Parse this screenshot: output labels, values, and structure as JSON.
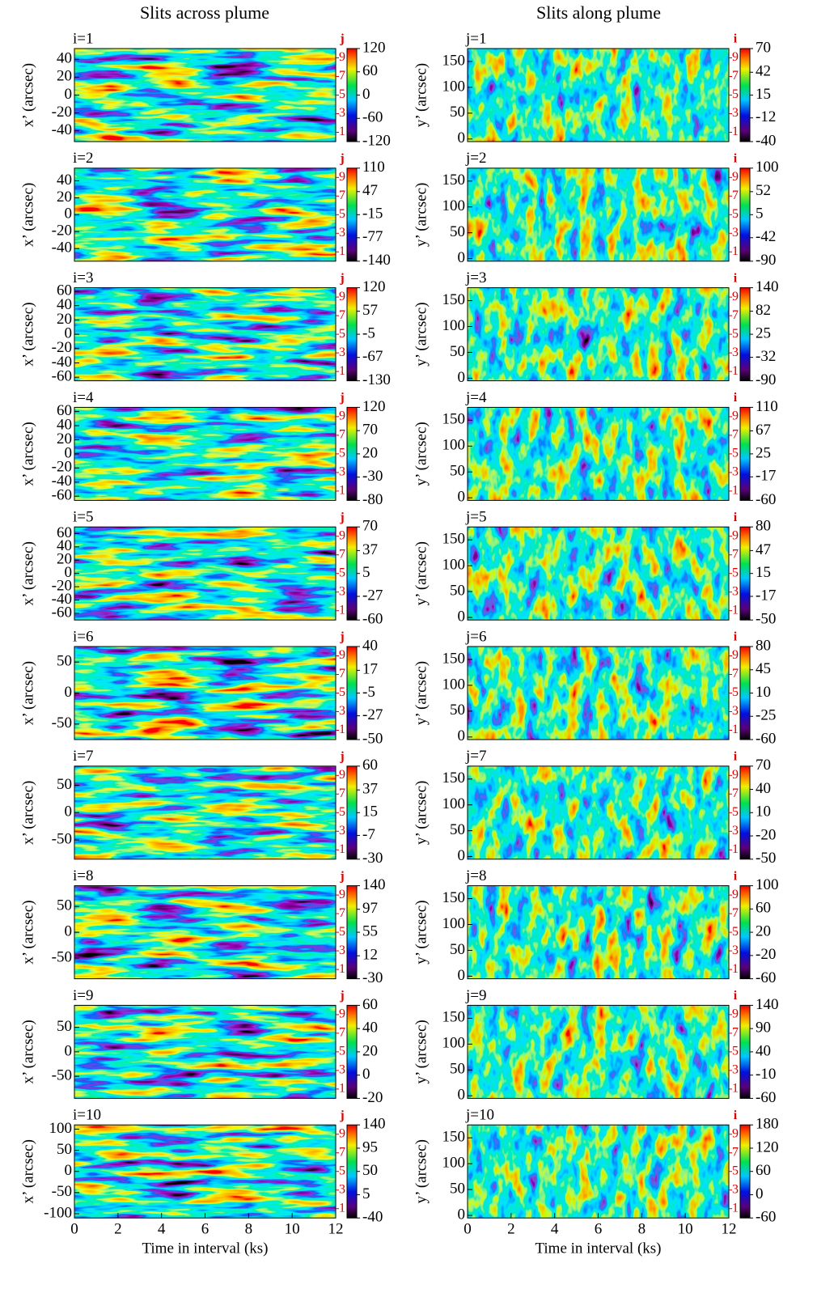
{
  "columns": [
    "Slits across plume",
    "Slits along plume"
  ],
  "chart_data": [
    {
      "type": "heatmap",
      "label": "i=1",
      "ylabel": "x’ (arcsec)",
      "ylim": [
        -52,
        52
      ],
      "yticks": [
        -40,
        -20,
        0,
        20,
        40
      ],
      "clim": [
        -120,
        120
      ],
      "cticks": [
        120,
        60,
        0,
        -60,
        -120
      ],
      "clabel": "j",
      "index_lim": [
        0,
        10
      ],
      "index_ticks": [
        1,
        3,
        5,
        7,
        9
      ]
    },
    {
      "type": "heatmap",
      "label": "i=2",
      "ylabel": "x’ (arcsec)",
      "ylim": [
        -55,
        55
      ],
      "yticks": [
        -40,
        -20,
        0,
        20,
        40
      ],
      "clim": [
        -140,
        110
      ],
      "cticks": [
        110,
        47,
        -15,
        -77,
        -140
      ],
      "clabel": "j",
      "index_lim": [
        0,
        10
      ],
      "index_ticks": [
        1,
        3,
        5,
        7,
        9
      ]
    },
    {
      "type": "heatmap",
      "label": "i=3",
      "ylabel": "x’ (arcsec)",
      "ylim": [
        -65,
        65
      ],
      "yticks": [
        -60,
        -40,
        -20,
        0,
        20,
        40,
        60
      ],
      "clim": [
        -130,
        120
      ],
      "cticks": [
        120,
        57,
        -5,
        -67,
        -130
      ],
      "clabel": "j",
      "index_lim": [
        0,
        10
      ],
      "index_ticks": [
        1,
        3,
        5,
        7,
        9
      ]
    },
    {
      "type": "heatmap",
      "label": "i=4",
      "ylabel": "x’ (arcsec)",
      "ylim": [
        -66,
        66
      ],
      "yticks": [
        -60,
        -40,
        -20,
        0,
        20,
        40,
        60
      ],
      "clim": [
        -80,
        120
      ],
      "cticks": [
        120,
        70,
        20,
        -30,
        -80
      ],
      "clabel": "j",
      "index_lim": [
        0,
        10
      ],
      "index_ticks": [
        1,
        3,
        5,
        7,
        9
      ]
    },
    {
      "type": "heatmap",
      "label": "i=5",
      "ylabel": "x’ (arcsec)",
      "ylim": [
        -70,
        70
      ],
      "yticks": [
        -60,
        -40,
        -20,
        0,
        20,
        40,
        60
      ],
      "clim": [
        -60,
        70
      ],
      "cticks": [
        70,
        37,
        5,
        -27,
        -60
      ],
      "clabel": "j",
      "index_lim": [
        0,
        10
      ],
      "index_ticks": [
        1,
        3,
        5,
        7,
        9
      ]
    },
    {
      "type": "heatmap",
      "label": "i=6",
      "ylabel": "x’ (arcsec)",
      "ylim": [
        -75,
        75
      ],
      "yticks": [
        -50,
        0,
        50
      ],
      "clim": [
        -50,
        40
      ],
      "cticks": [
        40,
        17,
        -5,
        -27,
        -50
      ],
      "clabel": "j",
      "index_lim": [
        0,
        10
      ],
      "index_ticks": [
        1,
        3,
        5,
        7,
        9
      ]
    },
    {
      "type": "heatmap",
      "label": "i=7",
      "ylabel": "x’ (arcsec)",
      "ylim": [
        -85,
        85
      ],
      "yticks": [
        -50,
        0,
        50
      ],
      "clim": [
        -30,
        60
      ],
      "cticks": [
        60,
        37,
        15,
        -7,
        -30
      ],
      "clabel": "j",
      "index_lim": [
        0,
        10
      ],
      "index_ticks": [
        1,
        3,
        5,
        7,
        9
      ]
    },
    {
      "type": "heatmap",
      "label": "i=8",
      "ylabel": "x’ (arcsec)",
      "ylim": [
        -90,
        90
      ],
      "yticks": [
        -50,
        0,
        50
      ],
      "clim": [
        -30,
        140
      ],
      "cticks": [
        140,
        97,
        55,
        12,
        -30
      ],
      "clabel": "j",
      "index_lim": [
        0,
        10
      ],
      "index_ticks": [
        1,
        3,
        5,
        7,
        9
      ]
    },
    {
      "type": "heatmap",
      "label": "i=9",
      "ylabel": "x’ (arcsec)",
      "ylim": [
        -95,
        95
      ],
      "yticks": [
        -50,
        0,
        50
      ],
      "clim": [
        -20,
        60
      ],
      "cticks": [
        60,
        40,
        20,
        0,
        -20
      ],
      "clabel": "j",
      "index_lim": [
        0,
        10
      ],
      "index_ticks": [
        1,
        3,
        5,
        7,
        9
      ]
    },
    {
      "type": "heatmap",
      "label": "i=10",
      "ylabel": "x’ (arcsec)",
      "ylim": [
        -110,
        110
      ],
      "yticks": [
        -100,
        -50,
        0,
        50,
        100
      ],
      "clim": [
        -40,
        140
      ],
      "cticks": [
        140,
        95,
        50,
        5,
        -40
      ],
      "clabel": "j",
      "index_lim": [
        0,
        10
      ],
      "index_ticks": [
        1,
        3,
        5,
        7,
        9
      ],
      "xlabel": "Time in interval (ks)",
      "xlim": [
        0,
        12
      ],
      "xticks": [
        0,
        2,
        4,
        6,
        8,
        10,
        12
      ]
    },
    {
      "type": "heatmap",
      "label": "j=1",
      "ylabel": "y’ (arcsec)",
      "ylim": [
        -5,
        175
      ],
      "yticks": [
        0,
        50,
        100,
        150
      ],
      "clim": [
        -40,
        70
      ],
      "cticks": [
        70,
        42,
        15,
        -12,
        -40
      ],
      "clabel": "i",
      "index_lim": [
        0,
        10
      ],
      "index_ticks": [
        1,
        3,
        5,
        7,
        9
      ]
    },
    {
      "type": "heatmap",
      "label": "j=2",
      "ylabel": "y’ (arcsec)",
      "ylim": [
        -5,
        175
      ],
      "yticks": [
        0,
        50,
        100,
        150
      ],
      "clim": [
        -90,
        100
      ],
      "cticks": [
        100,
        52,
        5,
        -42,
        -90
      ],
      "clabel": "i",
      "index_lim": [
        0,
        10
      ],
      "index_ticks": [
        1,
        3,
        5,
        7,
        9
      ]
    },
    {
      "type": "heatmap",
      "label": "j=3",
      "ylabel": "y’ (arcsec)",
      "ylim": [
        -5,
        175
      ],
      "yticks": [
        0,
        50,
        100,
        150
      ],
      "clim": [
        -90,
        140
      ],
      "cticks": [
        140,
        82,
        25,
        -32,
        -90
      ],
      "clabel": "i",
      "index_lim": [
        0,
        10
      ],
      "index_ticks": [
        1,
        3,
        5,
        7,
        9
      ]
    },
    {
      "type": "heatmap",
      "label": "j=4",
      "ylabel": "y’ (arcsec)",
      "ylim": [
        -5,
        175
      ],
      "yticks": [
        0,
        50,
        100,
        150
      ],
      "clim": [
        -60,
        110
      ],
      "cticks": [
        110,
        67,
        25,
        -17,
        -60
      ],
      "clabel": "i",
      "index_lim": [
        0,
        10
      ],
      "index_ticks": [
        1,
        3,
        5,
        7,
        9
      ]
    },
    {
      "type": "heatmap",
      "label": "j=5",
      "ylabel": "y’ (arcsec)",
      "ylim": [
        -5,
        175
      ],
      "yticks": [
        0,
        50,
        100,
        150
      ],
      "clim": [
        -50,
        80
      ],
      "cticks": [
        80,
        47,
        15,
        -17,
        -50
      ],
      "clabel": "i",
      "index_lim": [
        0,
        10
      ],
      "index_ticks": [
        1,
        3,
        5,
        7,
        9
      ]
    },
    {
      "type": "heatmap",
      "label": "j=6",
      "ylabel": "y’ (arcsec)",
      "ylim": [
        -5,
        175
      ],
      "yticks": [
        0,
        50,
        100,
        150
      ],
      "clim": [
        -60,
        80
      ],
      "cticks": [
        80,
        45,
        10,
        -25,
        -60
      ],
      "clabel": "i",
      "index_lim": [
        0,
        10
      ],
      "index_ticks": [
        1,
        3,
        5,
        7,
        9
      ]
    },
    {
      "type": "heatmap",
      "label": "j=7",
      "ylabel": "y’ (arcsec)",
      "ylim": [
        -5,
        175
      ],
      "yticks": [
        0,
        50,
        100,
        150
      ],
      "clim": [
        -50,
        70
      ],
      "cticks": [
        70,
        40,
        10,
        -20,
        -50
      ],
      "clabel": "i",
      "index_lim": [
        0,
        10
      ],
      "index_ticks": [
        1,
        3,
        5,
        7,
        9
      ]
    },
    {
      "type": "heatmap",
      "label": "j=8",
      "ylabel": "y’ (arcsec)",
      "ylim": [
        -5,
        175
      ],
      "yticks": [
        0,
        50,
        100,
        150
      ],
      "clim": [
        -60,
        100
      ],
      "cticks": [
        100,
        60,
        20,
        -20,
        -60
      ],
      "clabel": "i",
      "index_lim": [
        0,
        10
      ],
      "index_ticks": [
        1,
        3,
        5,
        7,
        9
      ]
    },
    {
      "type": "heatmap",
      "label": "j=9",
      "ylabel": "y’ (arcsec)",
      "ylim": [
        -5,
        175
      ],
      "yticks": [
        0,
        50,
        100,
        150
      ],
      "clim": [
        -60,
        140
      ],
      "cticks": [
        140,
        90,
        40,
        -10,
        -60
      ],
      "clabel": "i",
      "index_lim": [
        0,
        10
      ],
      "index_ticks": [
        1,
        3,
        5,
        7,
        9
      ]
    },
    {
      "type": "heatmap",
      "label": "j=10",
      "ylabel": "y’ (arcsec)",
      "ylim": [
        -5,
        175
      ],
      "yticks": [
        0,
        50,
        100,
        150
      ],
      "clim": [
        -60,
        180
      ],
      "cticks": [
        180,
        120,
        60,
        0,
        -60
      ],
      "clabel": "i",
      "index_lim": [
        0,
        10
      ],
      "index_ticks": [
        1,
        3,
        5,
        7,
        9
      ],
      "xlabel": "Time in interval (ks)",
      "xlim": [
        0,
        12
      ],
      "xticks": [
        0,
        2,
        4,
        6,
        8,
        10,
        12
      ]
    }
  ]
}
